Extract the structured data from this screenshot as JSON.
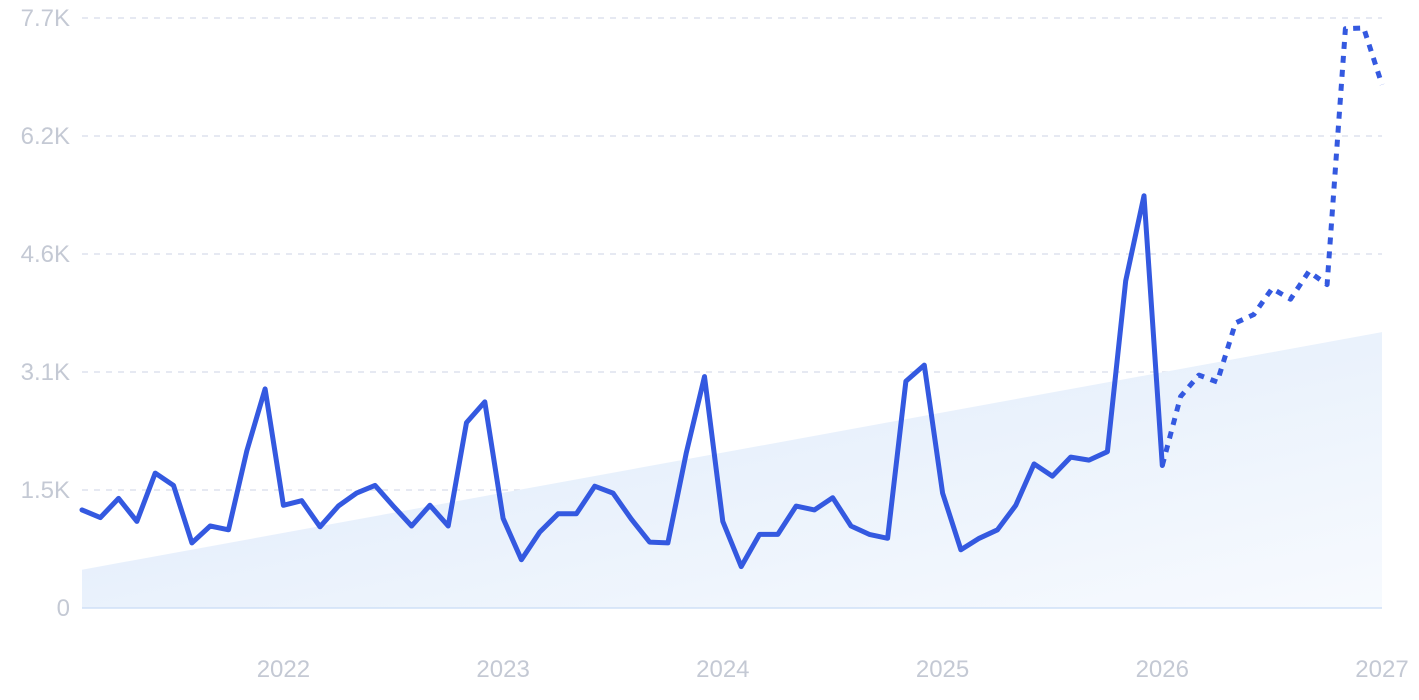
{
  "chart_data": {
    "type": "line",
    "y_ticks": [
      "0",
      "1.5K",
      "3.1K",
      "4.6K",
      "6.2K",
      "7.7K"
    ],
    "y_tick_values": [
      0,
      1540,
      3080,
      4620,
      6160,
      7700
    ],
    "x_ticks": [
      "2022",
      "2023",
      "2024",
      "2025",
      "2026",
      "2027"
    ],
    "x_tick_values": [
      "2022-01",
      "2023-01",
      "2024-01",
      "2025-01",
      "2026-01",
      "2027-01"
    ],
    "ylim": [
      0,
      7700
    ],
    "xlim": [
      "2021-02",
      "2027-01"
    ],
    "grid": "horizontal dashed",
    "colors": {
      "line": "#3459e0",
      "trend_fill": "#e4effc",
      "grid": "#dde2ee",
      "tick_text": "#c4c9d4"
    },
    "trend": {
      "start": [
        "2021-02",
        500
      ],
      "end": [
        "2027-01",
        3600
      ]
    },
    "series": [
      {
        "style": "solid",
        "points": [
          [
            "2021-02",
            1280
          ],
          [
            "2021-03",
            1180
          ],
          [
            "2021-04",
            1430
          ],
          [
            "2021-05",
            1130
          ],
          [
            "2021-06",
            1760
          ],
          [
            "2021-07",
            1600
          ],
          [
            "2021-08",
            850
          ],
          [
            "2021-09",
            1070
          ],
          [
            "2021-10",
            1020
          ],
          [
            "2021-11",
            2050
          ],
          [
            "2021-12",
            2860
          ],
          [
            "2022-01",
            1340
          ],
          [
            "2022-02",
            1400
          ],
          [
            "2022-03",
            1060
          ],
          [
            "2022-04",
            1330
          ],
          [
            "2022-05",
            1500
          ],
          [
            "2022-06",
            1600
          ],
          [
            "2022-07",
            1330
          ],
          [
            "2022-08",
            1070
          ],
          [
            "2022-09",
            1340
          ],
          [
            "2022-10",
            1070
          ],
          [
            "2022-11",
            2420
          ],
          [
            "2022-12",
            2690
          ],
          [
            "2023-01",
            1170
          ],
          [
            "2023-02",
            630
          ],
          [
            "2023-03",
            990
          ],
          [
            "2023-04",
            1230
          ],
          [
            "2023-05",
            1230
          ],
          [
            "2023-06",
            1590
          ],
          [
            "2023-07",
            1500
          ],
          [
            "2023-08",
            1160
          ],
          [
            "2023-09",
            860
          ],
          [
            "2023-10",
            850
          ],
          [
            "2023-11",
            2020
          ],
          [
            "2023-12",
            3020
          ],
          [
            "2024-01",
            1130
          ],
          [
            "2024-02",
            540
          ],
          [
            "2024-03",
            960
          ],
          [
            "2024-04",
            960
          ],
          [
            "2024-05",
            1330
          ],
          [
            "2024-06",
            1280
          ],
          [
            "2024-07",
            1440
          ],
          [
            "2024-08",
            1070
          ],
          [
            "2024-09",
            960
          ],
          [
            "2024-10",
            910
          ],
          [
            "2024-11",
            2960
          ],
          [
            "2024-12",
            3170
          ],
          [
            "2025-01",
            1500
          ],
          [
            "2025-02",
            760
          ],
          [
            "2025-03",
            910
          ],
          [
            "2025-04",
            1020
          ],
          [
            "2025-05",
            1340
          ],
          [
            "2025-06",
            1880
          ],
          [
            "2025-07",
            1720
          ],
          [
            "2025-08",
            1970
          ],
          [
            "2025-09",
            1930
          ],
          [
            "2025-10",
            2040
          ],
          [
            "2025-11",
            4270
          ],
          [
            "2025-12",
            5380
          ],
          [
            "2026-01",
            1860
          ]
        ]
      },
      {
        "style": "dotted",
        "points": [
          [
            "2026-01",
            1860
          ],
          [
            "2026-02",
            2760
          ],
          [
            "2026-03",
            3040
          ],
          [
            "2026-04",
            2950
          ],
          [
            "2026-05",
            3720
          ],
          [
            "2026-06",
            3830
          ],
          [
            "2026-07",
            4170
          ],
          [
            "2026-08",
            4030
          ],
          [
            "2026-09",
            4390
          ],
          [
            "2026-10",
            4220
          ],
          [
            "2026-11",
            7560
          ],
          [
            "2026-12",
            7570
          ],
          [
            "2027-01",
            6830
          ]
        ]
      }
    ]
  }
}
